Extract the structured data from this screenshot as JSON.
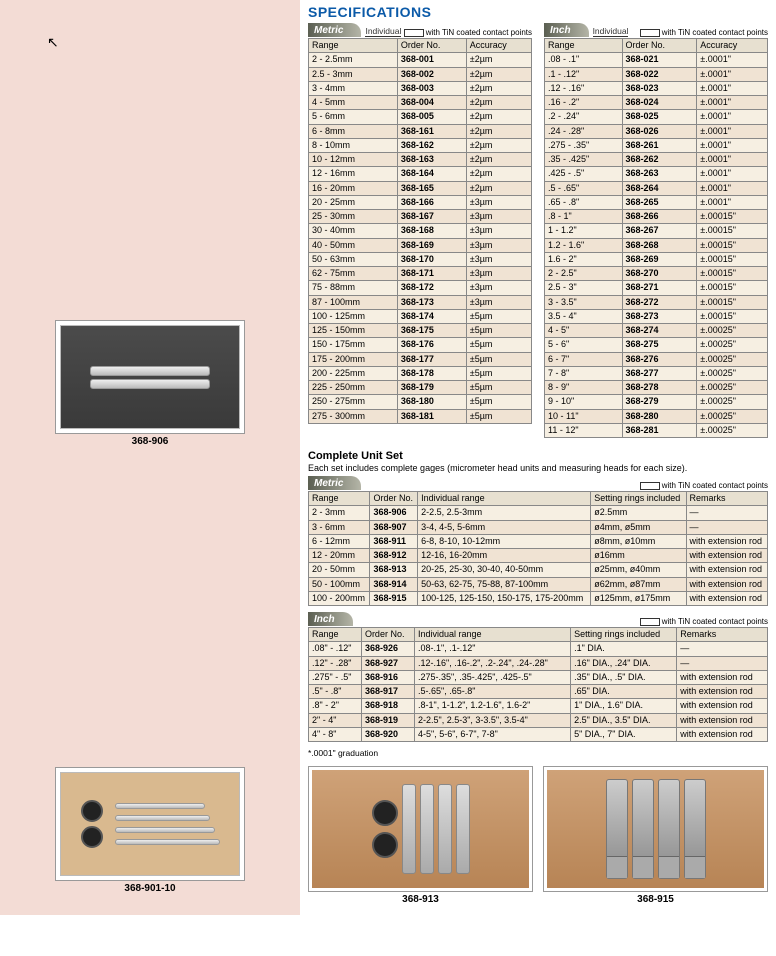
{
  "heading": "SPECIFICATIONS",
  "noteText": "with TiN coated contact points",
  "unitMetric": "Metric",
  "unitInch": "Inch",
  "subIndividual": "Individual",
  "colRange": "Range",
  "colOrder": "Order No.",
  "colAccuracy": "Accuracy",
  "colIndivRange": "Individual range",
  "colSettingRings": "Setting rings included",
  "colRemarks": "Remarks",
  "metric": [
    [
      "2 - 2.5mm",
      "368-001",
      "±2µm"
    ],
    [
      "2.5 - 3mm",
      "368-002",
      "±2µm"
    ],
    [
      "3 - 4mm",
      "368-003",
      "±2µm"
    ],
    [
      "4 - 5mm",
      "368-004",
      "±2µm"
    ],
    [
      "5 - 6mm",
      "368-005",
      "±2µm"
    ],
    [
      "6 - 8mm",
      "368-161",
      "±2µm"
    ],
    [
      "8 - 10mm",
      "368-162",
      "±2µm"
    ],
    [
      "10 - 12mm",
      "368-163",
      "±2µm"
    ],
    [
      "12 - 16mm",
      "368-164",
      "±2µm"
    ],
    [
      "16 - 20mm",
      "368-165",
      "±2µm"
    ],
    [
      "20 - 25mm",
      "368-166",
      "±3µm"
    ],
    [
      "25 - 30mm",
      "368-167",
      "±3µm"
    ],
    [
      "30 - 40mm",
      "368-168",
      "±3µm"
    ],
    [
      "40 - 50mm",
      "368-169",
      "±3µm"
    ],
    [
      "50 - 63mm",
      "368-170",
      "±3µm"
    ],
    [
      "62 - 75mm",
      "368-171",
      "±3µm"
    ],
    [
      "75 - 88mm",
      "368-172",
      "±3µm"
    ],
    [
      "87 - 100mm",
      "368-173",
      "±3µm"
    ],
    [
      "100 - 125mm",
      "368-174",
      "±5µm"
    ],
    [
      "125 - 150mm",
      "368-175",
      "±5µm"
    ],
    [
      "150 - 175mm",
      "368-176",
      "±5µm"
    ],
    [
      "175 - 200mm",
      "368-177",
      "±5µm"
    ],
    [
      "200 - 225mm",
      "368-178",
      "±5µm"
    ],
    [
      "225 - 250mm",
      "368-179",
      "±5µm"
    ],
    [
      "250 - 275mm",
      "368-180",
      "±5µm"
    ],
    [
      "275 - 300mm",
      "368-181",
      "±5µm"
    ]
  ],
  "inch": [
    [
      ".08 - .1\"",
      "368-021",
      "±.0001\""
    ],
    [
      ".1 - .12\"",
      "368-022",
      "±.0001\""
    ],
    [
      ".12 - .16\"",
      "368-023",
      "±.0001\""
    ],
    [
      ".16 - .2\"",
      "368-024",
      "±.0001\""
    ],
    [
      ".2 - .24\"",
      "368-025",
      "±.0001\""
    ],
    [
      ".24 - .28\"",
      "368-026",
      "±.0001\""
    ],
    [
      ".275 - .35\"",
      "368-261",
      "±.0001\""
    ],
    [
      ".35 - .425\"",
      "368-262",
      "±.0001\""
    ],
    [
      ".425 - .5\"",
      "368-263",
      "±.0001\""
    ],
    [
      ".5 - .65\"",
      "368-264",
      "±.0001\""
    ],
    [
      ".65 - .8\"",
      "368-265",
      "±.0001\""
    ],
    [
      ".8 - 1\"",
      "368-266",
      "±.00015\""
    ],
    [
      "1 - 1.2\"",
      "368-267",
      "±.00015\""
    ],
    [
      "1.2 - 1.6\"",
      "368-268",
      "±.00015\""
    ],
    [
      "1.6 - 2\"",
      "368-269",
      "±.00015\""
    ],
    [
      "2 - 2.5\"",
      "368-270",
      "±.00015\""
    ],
    [
      "2.5 - 3\"",
      "368-271",
      "±.00015\""
    ],
    [
      "3 - 3.5\"",
      "368-272",
      "±.00015\""
    ],
    [
      "3.5 - 4\"",
      "368-273",
      "±.00015\""
    ],
    [
      "4 - 5\"",
      "368-274",
      "±.00025\""
    ],
    [
      "5 - 6\"",
      "368-275",
      "±.00025\""
    ],
    [
      "6 - 7\"",
      "368-276",
      "±.00025\""
    ],
    [
      "7 - 8\"",
      "368-277",
      "±.00025\""
    ],
    [
      "8 - 9\"",
      "368-278",
      "±.00025\""
    ],
    [
      "9 - 10\"",
      "368-279",
      "±.00025\""
    ],
    [
      "10 - 11\"",
      "368-280",
      "±.00025\""
    ],
    [
      "11 - 12\"",
      "368-281",
      "±.00025\""
    ]
  ],
  "setTitle": "Complete Unit Set",
  "setDesc": "Each set includes complete gages (micrometer head units and measuring heads for each size).",
  "setMetric": [
    [
      "2 - 3mm",
      "368-906",
      "2-2.5, 2.5-3mm",
      "ø2.5mm",
      "—"
    ],
    [
      "3 - 6mm",
      "368-907",
      "3-4, 4-5, 5-6mm",
      "ø4mm, ø5mm",
      "—"
    ],
    [
      "6 - 12mm",
      "368-911",
      "6-8, 8-10, 10-12mm",
      "ø8mm, ø10mm",
      "with extension rod"
    ],
    [
      "12 - 20mm",
      "368-912",
      "12-16, 16-20mm",
      "ø16mm",
      "with extension rod"
    ],
    [
      "20 - 50mm",
      "368-913",
      "20-25, 25-30, 30-40, 40-50mm",
      "ø25mm, ø40mm",
      "with extension rod"
    ],
    [
      "50 - 100mm",
      "368-914",
      "50-63, 62-75, 75-88, 87-100mm",
      "ø62mm, ø87mm",
      "with extension rod"
    ],
    [
      "100 - 200mm",
      "368-915",
      "100-125, 125-150, 150-175, 175-200mm",
      "ø125mm, ø175mm",
      "with extension rod"
    ]
  ],
  "setInch": [
    [
      ".08\" - .12\"",
      "368-926",
      ".08-.1\", .1-.12\"",
      ".1\" DIA.",
      "—"
    ],
    [
      ".12\" - .28\"",
      "368-927",
      ".12-.16\", .16-.2\", .2-.24\", .24-.28\"",
      ".16\" DIA., .24\" DIA.",
      "—"
    ],
    [
      ".275\" - .5\"",
      "368-916",
      ".275-.35\", .35-.425\", .425-.5\"",
      ".35\" DIA., .5\" DIA.",
      "with extension rod"
    ],
    [
      ".5\" - .8\"",
      "368-917",
      ".5-.65\", .65-.8\"",
      ".65\" DIA.",
      "with extension rod"
    ],
    [
      ".8\" - 2\"",
      "368-918",
      ".8-1\", 1-1.2\", 1.2-1.6\", 1.6-2\"",
      "1\" DIA., 1.6\" DIA.",
      "with extension rod"
    ],
    [
      "2\" - 4\"",
      "368-919",
      "2-2.5\", 2.5-3\", 3-3.5\", 3.5-4\"",
      "2.5\" DIA., 3.5\" DIA.",
      "with extension rod"
    ],
    [
      "4\" - 8\"",
      "368-920",
      "4-5\", 5-6\", 6-7\", 7-8\"",
      "5\" DIA., 7\" DIA.",
      "with extension rod"
    ]
  ],
  "footnote": "*.0001\" graduation",
  "photoCap1": "368-906",
  "photoCap2": "368-901-10",
  "photoCap3": "368-913",
  "photoCap4": "368-915"
}
